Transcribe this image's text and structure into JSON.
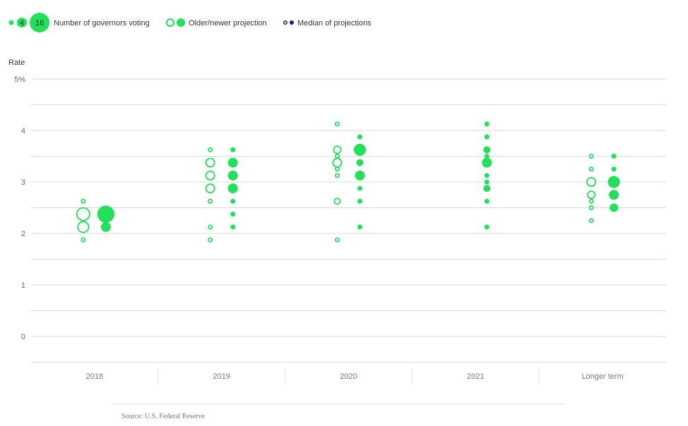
{
  "chart_data": {
    "type": "scatter",
    "title": "",
    "ylabel": "Rate",
    "ylim": [
      -0.5,
      5
    ],
    "y_ticks": [
      {
        "value": 5,
        "label": "5%"
      },
      {
        "value": 4,
        "label": "4"
      },
      {
        "value": 3,
        "label": "3"
      },
      {
        "value": 2,
        "label": "2"
      },
      {
        "value": 1,
        "label": "1"
      },
      {
        "value": 0,
        "label": "0"
      }
    ],
    "categories": [
      "2018",
      "2019",
      "2020",
      "2021",
      "Longer term"
    ],
    "legend": {
      "size_items": [
        1,
        4,
        16
      ],
      "size_label": "Number of governors voting",
      "projection_label": "Older/newer projection",
      "median_label": "Median of projections"
    },
    "colors": {
      "dot": "#22e05a",
      "median": "#1a10c8",
      "grid": "#d9d9d9"
    },
    "series": [
      {
        "name": "Older projection",
        "style": "hollow",
        "data": [
          [
            [
              2.625,
              1
            ],
            [
              2.375,
              8
            ],
            [
              2.125,
              6
            ],
            [
              1.875,
              1
            ]
          ],
          [
            [
              3.625,
              1
            ],
            [
              3.375,
              4
            ],
            [
              3.125,
              4
            ],
            [
              2.875,
              4
            ],
            [
              2.625,
              1
            ],
            [
              2.125,
              1
            ],
            [
              1.875,
              1
            ]
          ],
          [
            [
              4.125,
              1
            ],
            [
              3.625,
              3
            ],
            [
              3.5,
              1
            ],
            [
              3.375,
              4
            ],
            [
              3.25,
              1
            ],
            [
              3.125,
              1
            ],
            [
              2.625,
              2
            ],
            [
              1.875,
              1
            ]
          ],
          [],
          [
            [
              3.5,
              1
            ],
            [
              3.25,
              1
            ],
            [
              3.0,
              4
            ],
            [
              2.75,
              3
            ],
            [
              2.625,
              1
            ],
            [
              2.5,
              1
            ],
            [
              2.25,
              1
            ]
          ]
        ]
      },
      {
        "name": "Newer projection",
        "style": "filled",
        "data": [
          [
            [
              2.375,
              12
            ],
            [
              2.125,
              4
            ]
          ],
          [
            [
              3.625,
              1
            ],
            [
              3.375,
              4
            ],
            [
              3.125,
              4
            ],
            [
              2.875,
              4
            ],
            [
              2.625,
              1
            ],
            [
              2.375,
              1
            ],
            [
              2.125,
              1
            ]
          ],
          [
            [
              3.875,
              1
            ],
            [
              3.625,
              6
            ],
            [
              3.375,
              2
            ],
            [
              3.125,
              4
            ],
            [
              2.875,
              1
            ],
            [
              2.625,
              1
            ],
            [
              2.125,
              1
            ]
          ],
          [
            [
              4.125,
              1
            ],
            [
              3.875,
              1
            ],
            [
              3.625,
              2
            ],
            [
              3.5,
              1
            ],
            [
              3.375,
              4
            ],
            [
              3.125,
              1
            ],
            [
              3.0,
              1
            ],
            [
              2.875,
              2
            ],
            [
              2.625,
              1
            ],
            [
              2.125,
              1
            ]
          ],
          [
            [
              3.5,
              1
            ],
            [
              3.25,
              1
            ],
            [
              3.0,
              6
            ],
            [
              2.75,
              4
            ],
            [
              2.5,
              3
            ]
          ]
        ]
      }
    ],
    "source": "Source: U.S. Federal Reserve"
  }
}
